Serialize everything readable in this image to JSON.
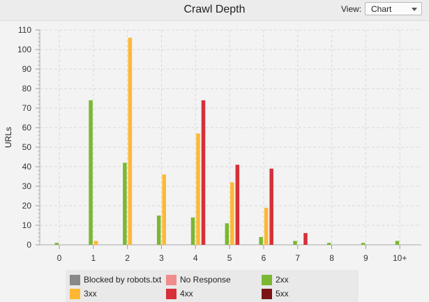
{
  "header": {
    "title": "Crawl Depth",
    "view_label": "View:",
    "view_value": "Chart"
  },
  "chart_data": {
    "type": "bar",
    "categories": [
      "0",
      "1",
      "2",
      "3",
      "4",
      "5",
      "6",
      "7",
      "8",
      "9",
      "10+"
    ],
    "ylabel": "URLs",
    "xlabel": "",
    "ylim": [
      0,
      110
    ],
    "yticks": [
      0,
      10,
      20,
      30,
      40,
      50,
      60,
      70,
      80,
      90,
      100,
      110
    ],
    "grid": true,
    "legend_position": "bottom",
    "series": [
      {
        "name": "Blocked by robots.txt",
        "color": "#888888",
        "values": [
          0,
          0,
          0,
          0,
          0,
          0,
          0,
          0,
          0,
          0,
          0
        ]
      },
      {
        "name": "No Response",
        "color": "#f08c8c",
        "values": [
          0,
          0,
          0,
          0,
          0,
          0,
          0,
          0,
          0,
          0,
          0
        ]
      },
      {
        "name": "2xx",
        "color": "#7ab832",
        "values": [
          1,
          74,
          42,
          15,
          14,
          11,
          4,
          2,
          1,
          1,
          2
        ]
      },
      {
        "name": "3xx",
        "color": "#ffb733",
        "values": [
          0,
          2,
          106,
          36,
          57,
          32,
          19,
          0,
          0,
          0,
          0
        ]
      },
      {
        "name": "4xx",
        "color": "#d63038",
        "values": [
          0,
          0,
          0,
          0,
          74,
          41,
          39,
          6,
          0,
          0,
          0
        ]
      },
      {
        "name": "5xx",
        "color": "#7b1416",
        "values": [
          0,
          0,
          0,
          0,
          0,
          0,
          0,
          0,
          0,
          0,
          0
        ]
      }
    ]
  }
}
